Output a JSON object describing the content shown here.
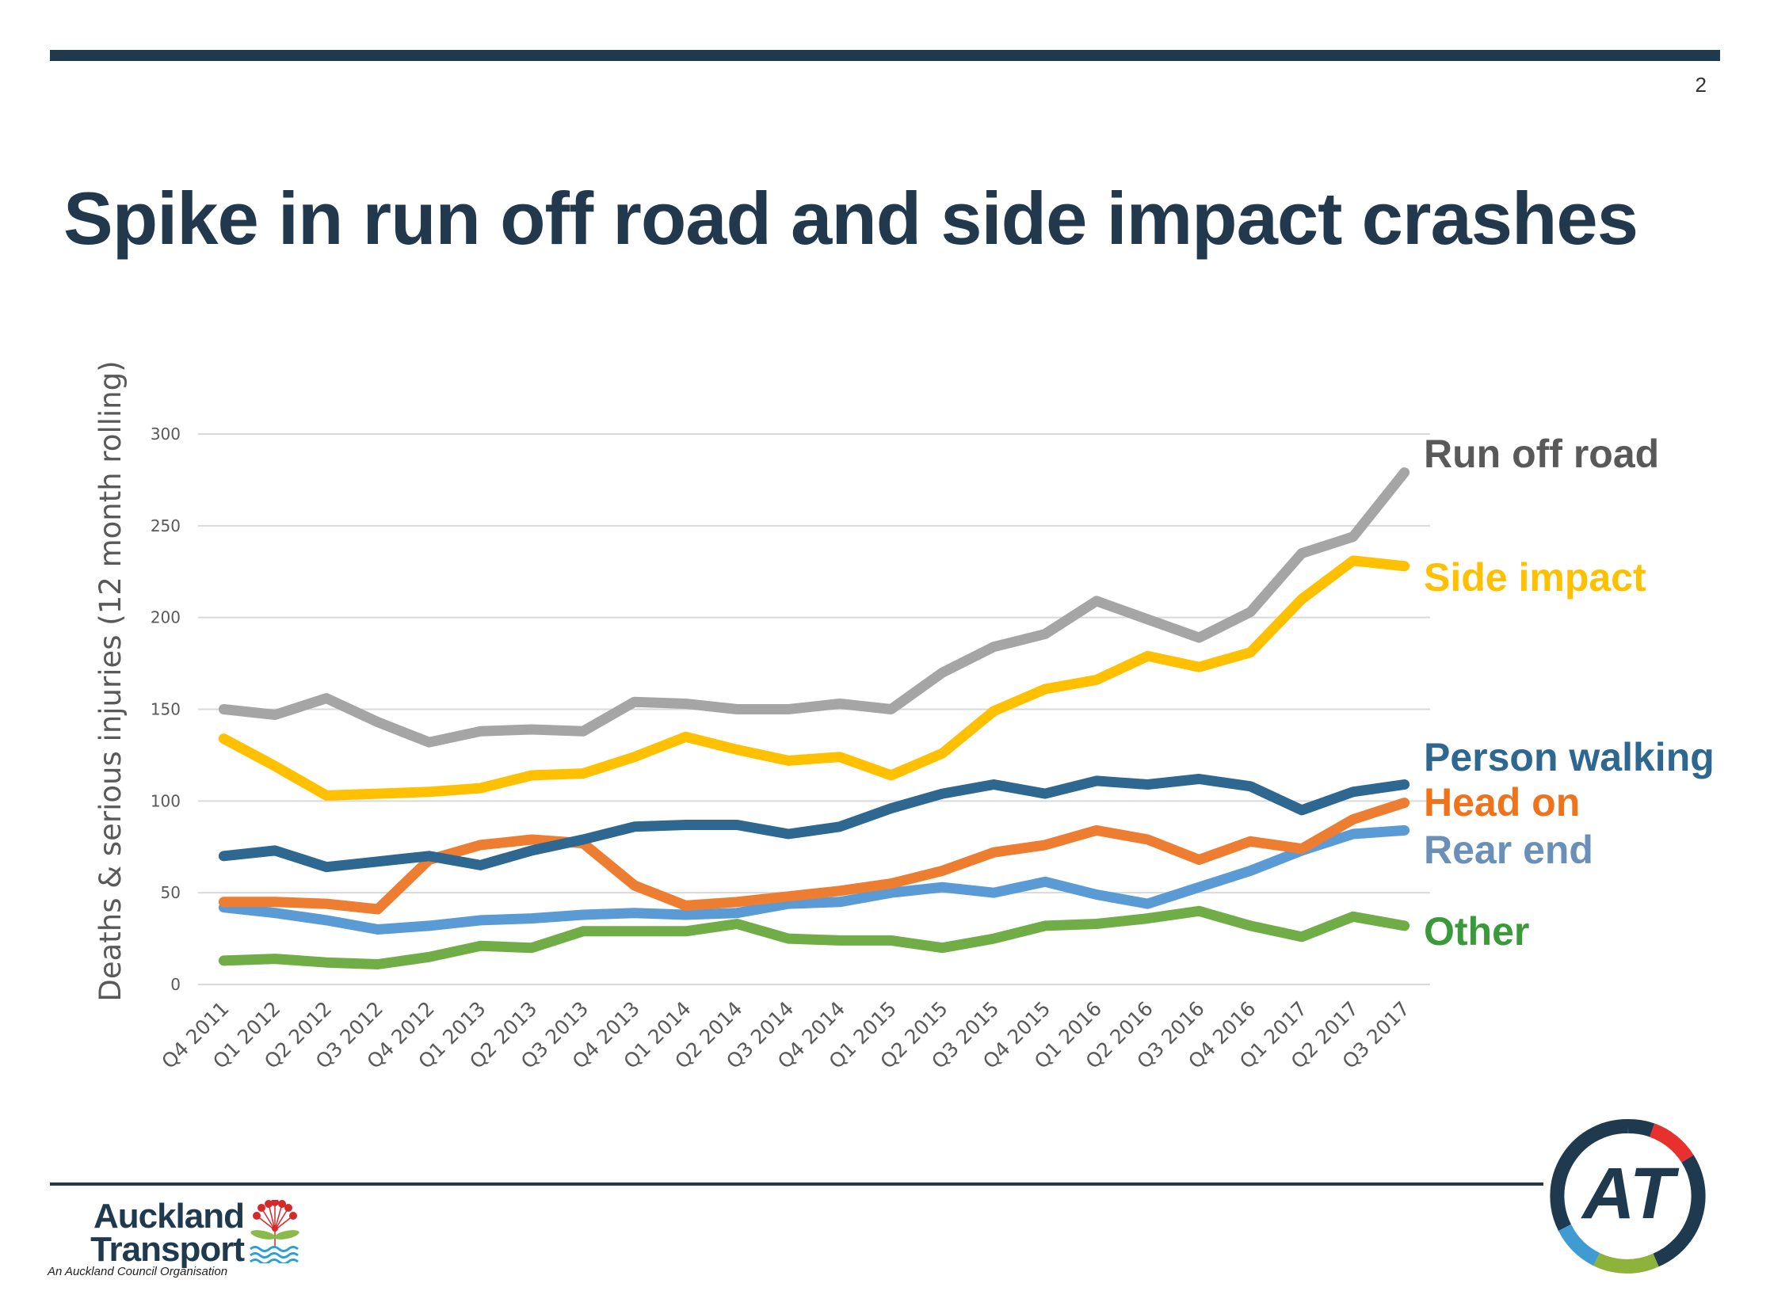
{
  "slide": {
    "page_number": "2",
    "title": "Spike in run off road and side impact crashes"
  },
  "footer": {
    "logo_line1": "Auckland",
    "logo_line2": "Transport",
    "logo_subtitle": "An Auckland Council Organisation",
    "roundel_letters": "AT"
  },
  "colors": {
    "brand_navy": "#1f3a4f",
    "grid": "#d9d9d9",
    "axis_text": "#595959"
  },
  "chart_data": {
    "type": "line",
    "title": "",
    "xlabel": "",
    "ylabel": "Deaths & serious injuries (12 month rolling)",
    "ylim": [
      0,
      300
    ],
    "yticks": [
      0,
      50,
      100,
      150,
      200,
      250,
      300
    ],
    "grid": true,
    "legend": "direct labels at right",
    "categories": [
      "Q4 2011",
      "Q1 2012",
      "Q2 2012",
      "Q3 2012",
      "Q4 2012",
      "Q1 2013",
      "Q2 2013",
      "Q3 2013",
      "Q4 2013",
      "Q1 2014",
      "Q2 2014",
      "Q3 2014",
      "Q4 2014",
      "Q1 2015",
      "Q2 2015",
      "Q3 2015",
      "Q4 2015",
      "Q1 2016",
      "Q2 2016",
      "Q3 2016",
      "Q4 2016",
      "Q1 2017",
      "Q2 2017",
      "Q3 2017"
    ],
    "series": [
      {
        "name": "Run off road",
        "color": "#a5a5a5",
        "label_color": "#595959",
        "values": [
          150,
          147,
          156,
          143,
          132,
          138,
          139,
          138,
          154,
          153,
          150,
          150,
          153,
          150,
          170,
          184,
          191,
          209,
          199,
          189,
          203,
          235,
          244,
          279
        ]
      },
      {
        "name": "Side impact",
        "color": "#ffc000",
        "label_color": "#ffc000",
        "values": [
          134,
          119,
          103,
          104,
          105,
          107,
          114,
          115,
          124,
          135,
          128,
          122,
          124,
          114,
          126,
          149,
          161,
          166,
          179,
          173,
          181,
          210,
          231,
          228
        ]
      },
      {
        "name": "Person walking",
        "color": "#2e6790",
        "label_color": "#2e6790",
        "values": [
          70,
          73,
          64,
          67,
          70,
          65,
          73,
          79,
          86,
          87,
          87,
          82,
          86,
          96,
          104,
          109,
          104,
          111,
          109,
          112,
          108,
          95,
          105,
          109
        ]
      },
      {
        "name": "Head on",
        "color": "#ed7d31",
        "label_color": "#f0731c",
        "values": [
          45,
          45,
          44,
          41,
          68,
          76,
          79,
          77,
          54,
          43,
          45,
          48,
          51,
          55,
          62,
          72,
          76,
          84,
          79,
          68,
          78,
          74,
          90,
          99
        ]
      },
      {
        "name": "Rear end",
        "color": "#5b9bd5",
        "label_color": "#6a8fb8",
        "values": [
          42,
          39,
          35,
          30,
          32,
          35,
          36,
          38,
          39,
          38,
          39,
          44,
          45,
          50,
          53,
          50,
          56,
          49,
          44,
          53,
          62,
          73,
          82,
          84
        ]
      },
      {
        "name": "Other",
        "color": "#70ad47",
        "label_color": "#3a9a3a",
        "values": [
          13,
          14,
          12,
          11,
          15,
          21,
          20,
          29,
          29,
          29,
          33,
          25,
          24,
          24,
          20,
          25,
          32,
          33,
          36,
          40,
          32,
          26,
          37,
          32
        ]
      }
    ]
  }
}
